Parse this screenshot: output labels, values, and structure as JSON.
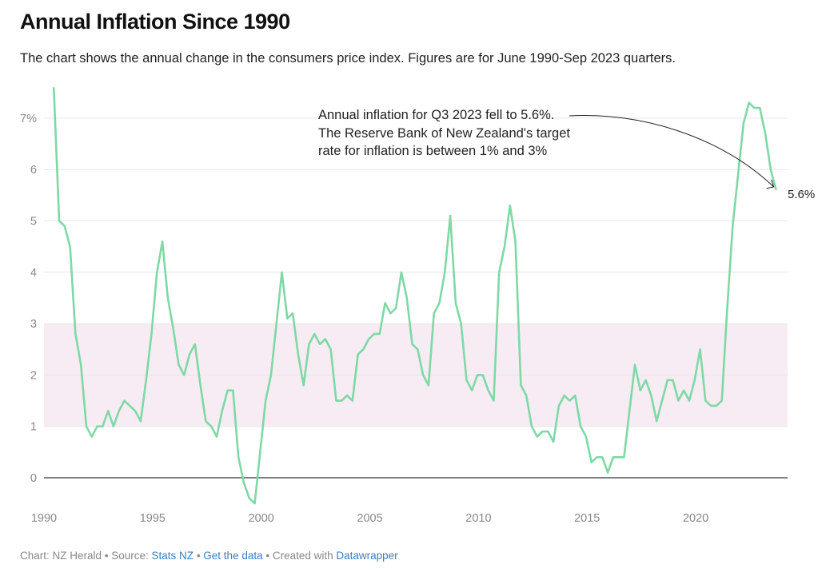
{
  "title": "Annual Inflation Since 1990",
  "subtitle": "The chart shows the annual change in the consumers price index. Figures are for June 1990-Sep 2023 quarters.",
  "footer": {
    "chart_by": "Chart: NZ Herald",
    "sep1": " • Source: ",
    "source": "Stats NZ",
    "sep2": " • ",
    "get_data": "Get the data",
    "sep3": " • Created with ",
    "tool": "Datawrapper"
  },
  "chart_data": {
    "type": "line",
    "title": "Annual Inflation Since 1990",
    "xlabel": "",
    "ylabel": "",
    "ylim": [
      -0.6,
      7.7
    ],
    "xlim": [
      1990,
      2024
    ],
    "yticks": [
      0,
      1,
      2,
      3,
      4,
      5,
      6,
      7
    ],
    "ytick_labels": [
      "0",
      "1",
      "2",
      "3",
      "4",
      "5",
      "6",
      "7%"
    ],
    "xticks": [
      1990,
      1995,
      2000,
      2005,
      2010,
      2015,
      2020
    ],
    "xtick_labels": [
      "1990",
      "1995",
      "2000",
      "2005",
      "2010",
      "2015",
      "2020"
    ],
    "grid": true,
    "target_band": {
      "from": 1,
      "to": 3,
      "color": "#f7ecf3"
    },
    "line_color": "#7ed9a5",
    "annotation": "Annual inflation for Q3 2023 fell to 5.6%. The Reserve Bank of New Zealand's target rate for inflation is between 1% and 3%",
    "end_label": "5.6%",
    "start": "1990 Q2",
    "quarters_per_year": 4,
    "values": [
      7.6,
      5.0,
      4.9,
      4.5,
      2.8,
      2.2,
      1.0,
      0.8,
      1.0,
      1.0,
      1.3,
      1.0,
      1.3,
      1.5,
      1.4,
      1.3,
      1.1,
      1.9,
      2.8,
      4.0,
      4.6,
      3.5,
      2.9,
      2.2,
      2.0,
      2.4,
      2.6,
      1.8,
      1.1,
      1.0,
      0.8,
      1.3,
      1.7,
      1.7,
      0.4,
      -0.1,
      -0.4,
      -0.5,
      0.5,
      1.5,
      2.0,
      3.0,
      4.0,
      3.1,
      3.2,
      2.4,
      1.8,
      2.6,
      2.8,
      2.6,
      2.7,
      2.5,
      1.5,
      1.5,
      1.6,
      1.5,
      2.4,
      2.5,
      2.7,
      2.8,
      2.8,
      3.4,
      3.2,
      3.3,
      4.0,
      3.5,
      2.6,
      2.5,
      2.0,
      1.8,
      3.2,
      3.4,
      4.0,
      5.1,
      3.4,
      3.0,
      1.9,
      1.7,
      2.0,
      2.0,
      1.7,
      1.5,
      4.0,
      4.5,
      5.3,
      4.6,
      1.8,
      1.6,
      1.0,
      0.8,
      0.9,
      0.9,
      0.7,
      1.4,
      1.6,
      1.5,
      1.6,
      1.0,
      0.8,
      0.3,
      0.4,
      0.4,
      0.1,
      0.4,
      0.4,
      0.4,
      1.3,
      2.2,
      1.7,
      1.9,
      1.6,
      1.1,
      1.5,
      1.9,
      1.9,
      1.5,
      1.7,
      1.5,
      1.9,
      2.5,
      1.5,
      1.4,
      1.4,
      1.5,
      3.3,
      4.9,
      5.9,
      6.9,
      7.3,
      7.2,
      7.2,
      6.7,
      6.0,
      5.6
    ]
  }
}
